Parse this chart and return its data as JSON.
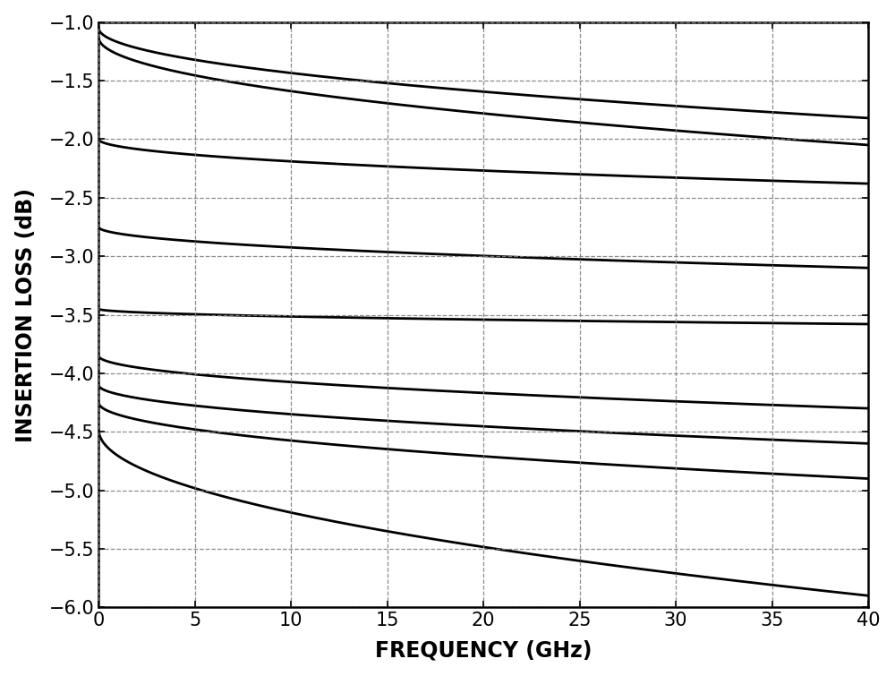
{
  "title": "",
  "xlabel": "FREQUENCY (GHz)",
  "ylabel": "INSERTION LOSS (dB)",
  "xlim": [
    0,
    40
  ],
  "ylim": [
    -6.0,
    -1.0
  ],
  "xticks": [
    0,
    5,
    10,
    15,
    20,
    25,
    30,
    35,
    40
  ],
  "yticks": [
    -6.0,
    -5.5,
    -5.0,
    -4.5,
    -4.0,
    -3.5,
    -3.0,
    -2.5,
    -2.0,
    -1.5,
    -1.0
  ],
  "background_color": "#ffffff",
  "line_color": "#000000",
  "grid_color": "#808080",
  "curves": [
    {
      "y0": -1.05,
      "y40": -1.82,
      "alpha": 0.5,
      "lw": 2.0
    },
    {
      "y0": -1.13,
      "y40": -2.05,
      "alpha": 0.5,
      "lw": 2.0
    },
    {
      "y0": -2.0,
      "y40": -2.38,
      "alpha": 0.5,
      "lw": 2.0
    },
    {
      "y0": -2.75,
      "y40": -3.1,
      "alpha": 0.5,
      "lw": 2.0
    },
    {
      "y0": -3.45,
      "y40": -3.58,
      "alpha": 0.5,
      "lw": 2.0
    },
    {
      "y0": -3.85,
      "y40": -4.3,
      "alpha": 0.5,
      "lw": 2.0
    },
    {
      "y0": -4.1,
      "y40": -4.6,
      "alpha": 0.5,
      "lw": 2.0
    },
    {
      "y0": -4.25,
      "y40": -4.9,
      "alpha": 0.5,
      "lw": 2.0
    },
    {
      "y0": -4.48,
      "y40": -5.9,
      "alpha": 0.5,
      "lw": 2.0
    }
  ],
  "xlabel_fontsize": 17,
  "ylabel_fontsize": 17,
  "tick_fontsize": 15
}
